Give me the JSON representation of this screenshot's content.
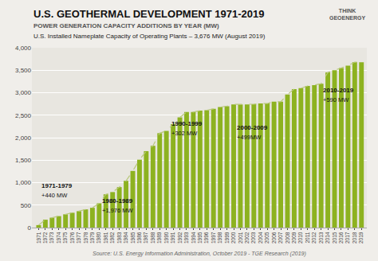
{
  "chart_data": {
    "type": "bar",
    "title": "U.S. GEOTHERMAL DEVELOPMENT 1971-2019",
    "subtitle": [
      "POWER GENERATION CAPACITY ADDITIONS BY YEAR (MW)",
      "U.S. Installed Nameplate Capacity of Operating Plants – 3,676 MW (August 2019)"
    ],
    "source": "Source: U.S. Energy Information Administration, October 2019 - TGE Research (2019)",
    "logo": "THINK\nGEOENERGY",
    "background": "#f0eeea",
    "plot_background": "#e8e6e0",
    "color": "#8db220",
    "line_color": "#b8c87a",
    "line_style": "dashed",
    "x": [
      1971,
      1972,
      1973,
      1974,
      1975,
      1976,
      1977,
      1978,
      1979,
      1980,
      1981,
      1982,
      1983,
      1984,
      1985,
      1986,
      1987,
      1988,
      1989,
      1990,
      1991,
      1992,
      1993,
      1994,
      1995,
      1996,
      1997,
      1998,
      1999,
      2000,
      2001,
      2002,
      2003,
      2004,
      2005,
      2006,
      2007,
      2008,
      2009,
      2010,
      2011,
      2012,
      2013,
      2014,
      2015,
      2016,
      2017,
      2018,
      2019
    ],
    "values": [
      55,
      175,
      220,
      255,
      295,
      330,
      365,
      405,
      440,
      540,
      740,
      790,
      900,
      1040,
      1260,
      1510,
      1700,
      1820,
      2100,
      2150,
      2300,
      2450,
      2570,
      2570,
      2600,
      2610,
      2640,
      2680,
      2700,
      2740,
      2740,
      2740,
      2745,
      2760,
      2760,
      2800,
      2800,
      2960,
      3080,
      3100,
      3150,
      3170,
      3200,
      3450,
      3500,
      3550,
      3600,
      3680,
      3676
    ],
    "xlim": [
      1970,
      2019.8
    ],
    "xticks": [
      1971,
      1972,
      1973,
      1974,
      1975,
      1976,
      1977,
      1978,
      1979,
      1980,
      1981,
      1982,
      1983,
      1984,
      1985,
      1986,
      1987,
      1988,
      1989,
      1990,
      1991,
      1992,
      1993,
      1994,
      1995,
      1996,
      1997,
      1998,
      1999,
      2000,
      2001,
      2002,
      2003,
      2004,
      2005,
      2006,
      2007,
      2008,
      2009,
      2010,
      2011,
      2012,
      2013,
      2014,
      2015,
      2016,
      2017,
      2018,
      2019
    ],
    "ylim": [
      0,
      4000
    ],
    "yticks": [
      0,
      500,
      {
        "value": 1000,
        "label": "1,000"
      },
      {
        "value": 1500,
        "label": "1,500"
      },
      {
        "value": 2000,
        "label": "2,000"
      },
      {
        "value": 2500,
        "label": "2,500"
      },
      {
        "value": 3000,
        "label": "3,000"
      },
      {
        "value": 3500,
        "label": "3,500"
      },
      {
        "value": 4000,
        "label": "4,000"
      }
    ],
    "grid": true,
    "annotations": [
      {
        "line1": "1971-1979",
        "line2": "+440 MW",
        "x": 1971.2,
        "y": 820
      },
      {
        "line1": "1980-1989",
        "line2": "+1,976 MW",
        "x": 1980.2,
        "y": 480
      },
      {
        "line1": "1990-1999",
        "line2": "+302 MW",
        "x": 1990.5,
        "y": 2200
      },
      {
        "line1": "2000-2009",
        "line2": "+499MW",
        "x": 2000.2,
        "y": 2100
      },
      {
        "line1": "2010-2019",
        "line2": "+590 MW",
        "x": 2013.0,
        "y": 2930
      }
    ]
  }
}
